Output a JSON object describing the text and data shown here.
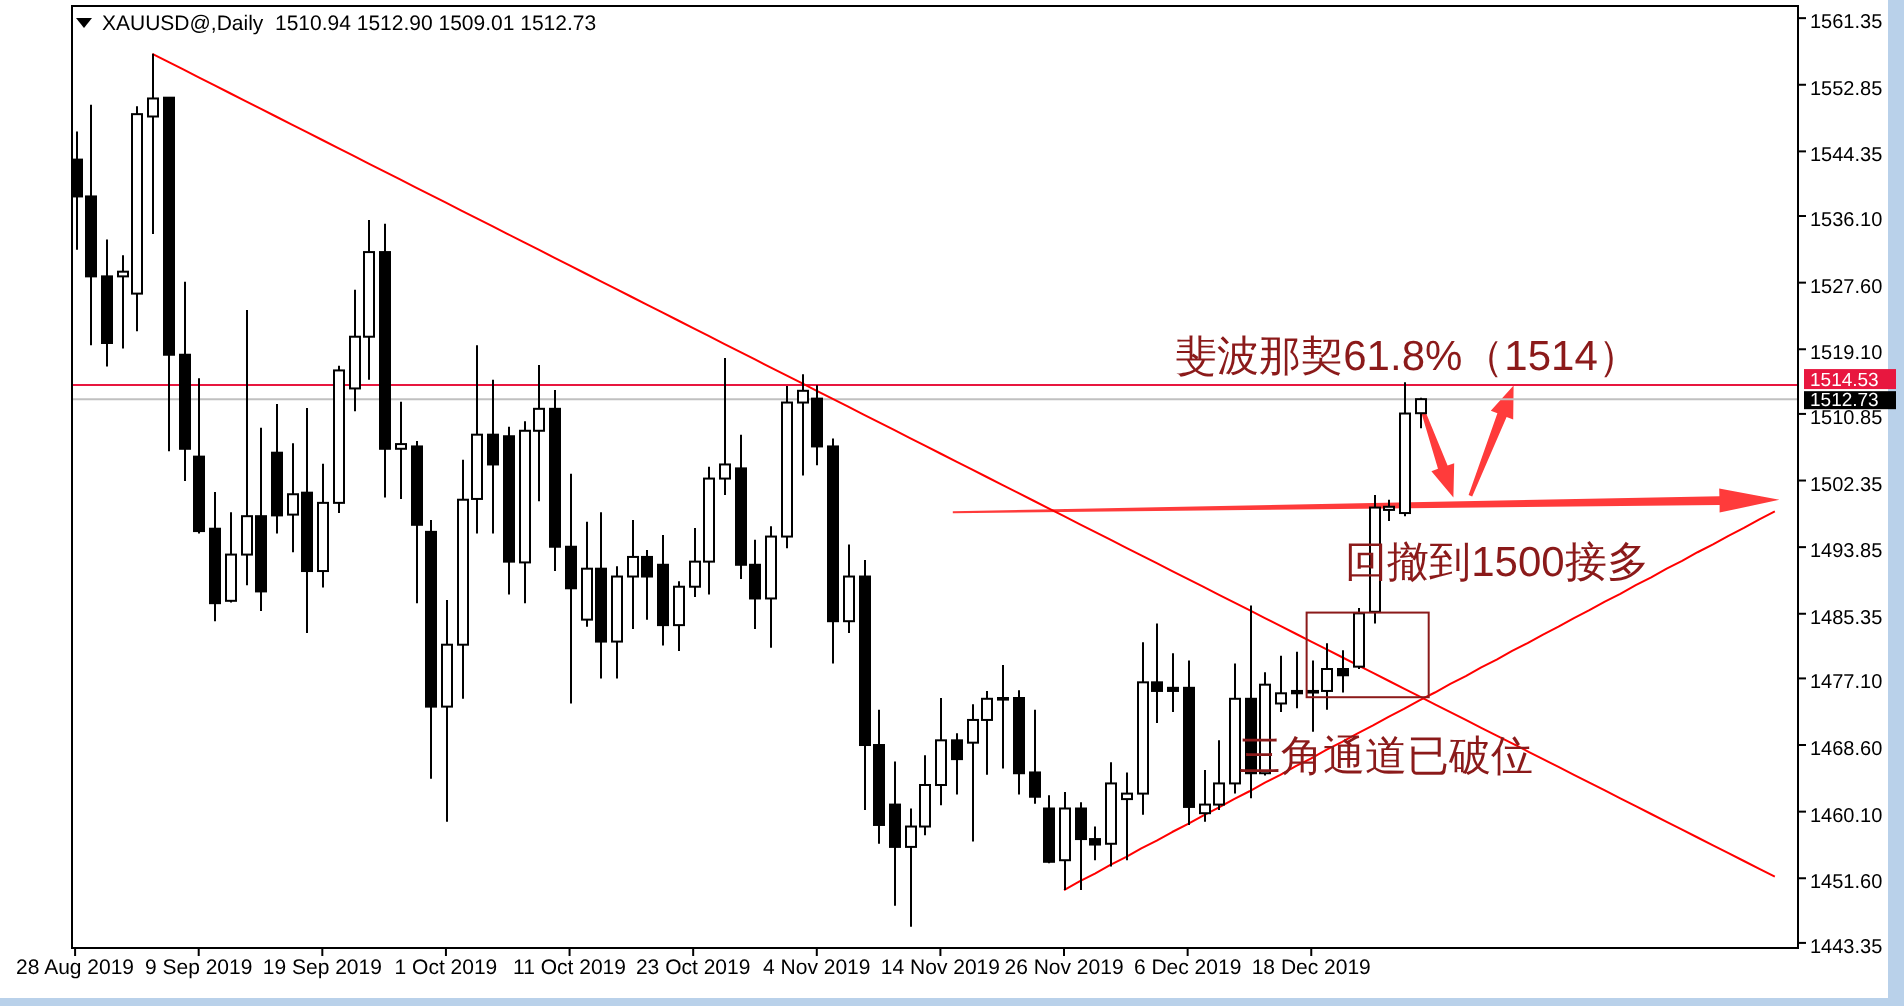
{
  "chart_data": {
    "type": "candlestick",
    "title": "XAUUSD@,Daily  1510.94 1512.90 1509.01 1512.73",
    "categories": [
      "28 Aug 2019",
      null,
      null,
      null,
      null,
      null,
      null,
      null,
      "9 Sep 2019",
      null,
      null,
      null,
      null,
      null,
      null,
      null,
      "19 Sep 2019",
      null,
      null,
      null,
      null,
      null,
      null,
      null,
      "1 Oct 2019",
      null,
      null,
      null,
      null,
      null,
      null,
      null,
      "11 Oct 2019",
      null,
      null,
      null,
      null,
      null,
      null,
      null,
      "23 Oct 2019",
      null,
      null,
      null,
      null,
      null,
      null,
      null,
      "4 Nov 2019",
      null,
      null,
      null,
      null,
      null,
      null,
      null,
      "14 Nov 2019",
      null,
      null,
      null,
      null,
      null,
      null,
      null,
      "26 Nov 2019",
      null,
      null,
      null,
      null,
      null,
      null,
      null,
      "6 Dec 2019",
      null,
      null,
      null,
      null,
      null,
      null,
      null,
      "18 Dec 2019",
      null,
      null,
      null,
      null,
      null,
      null,
      null,
      null,
      null,
      null,
      null,
      null,
      null,
      null,
      null,
      null,
      null,
      null,
      null,
      null,
      null,
      null,
      null,
      null,
      null,
      null,
      null,
      null,
      null,
      null
    ],
    "ohlc": [
      [
        1543.3,
        1546.9,
        1531.8,
        1538.6
      ],
      [
        1538.6,
        1550.3,
        1519.6,
        1528.4
      ],
      [
        1528.4,
        1533.1,
        1516.9,
        1519.9
      ],
      [
        1528.4,
        1531.1,
        1519.2,
        1529.0
      ],
      [
        1526.2,
        1550.1,
        1521.4,
        1549.1
      ],
      [
        1548.8,
        1556.8,
        1533.8,
        1551.1
      ],
      [
        1551.2,
        1551.2,
        1506.1,
        1518.4
      ],
      [
        1518.4,
        1527.7,
        1502.3,
        1506.4
      ],
      [
        1505.4,
        1515.4,
        1495.6,
        1495.9
      ],
      [
        1496.2,
        1500.9,
        1484.4,
        1486.7
      ],
      [
        1487.0,
        1498.3,
        1486.8,
        1492.9
      ],
      [
        1492.9,
        1524.1,
        1489.0,
        1497.8
      ],
      [
        1497.8,
        1509.1,
        1485.7,
        1488.2
      ],
      [
        1505.9,
        1512.1,
        1495.6,
        1497.9
      ],
      [
        1498.0,
        1507.1,
        1493.2,
        1500.6
      ],
      [
        1500.8,
        1511.6,
        1482.9,
        1490.8
      ],
      [
        1490.8,
        1504.5,
        1488.7,
        1499.5
      ],
      [
        1499.5,
        1517.0,
        1498.2,
        1516.4
      ],
      [
        1514.1,
        1526.7,
        1511.2,
        1520.7
      ],
      [
        1520.7,
        1535.6,
        1515.2,
        1531.5
      ],
      [
        1531.5,
        1535.1,
        1500.2,
        1506.4
      ],
      [
        1506.4,
        1512.4,
        1500.0,
        1507.0
      ],
      [
        1506.7,
        1507.4,
        1486.7,
        1496.7
      ],
      [
        1495.8,
        1497.3,
        1464.3,
        1473.5
      ],
      [
        1473.5,
        1487.1,
        1458.8,
        1481.4
      ],
      [
        1481.4,
        1505.0,
        1474.5,
        1499.9
      ],
      [
        1500.0,
        1519.6,
        1495.6,
        1508.2
      ],
      [
        1508.2,
        1515.2,
        1495.6,
        1504.4
      ],
      [
        1508.0,
        1509.2,
        1487.8,
        1492.0
      ],
      [
        1491.9,
        1509.9,
        1486.7,
        1508.7
      ],
      [
        1508.7,
        1517.1,
        1499.7,
        1511.5
      ],
      [
        1511.5,
        1513.9,
        1490.8,
        1493.9
      ],
      [
        1493.9,
        1503.2,
        1473.9,
        1488.6
      ],
      [
        1484.6,
        1497.1,
        1483.7,
        1491.1
      ],
      [
        1491.1,
        1498.3,
        1477.1,
        1481.8
      ],
      [
        1481.8,
        1491.4,
        1477.1,
        1490.1
      ],
      [
        1490.1,
        1497.3,
        1483.4,
        1492.6
      ],
      [
        1492.6,
        1493.5,
        1484.6,
        1490.1
      ],
      [
        1491.6,
        1495.4,
        1481.3,
        1483.9
      ],
      [
        1483.9,
        1489.5,
        1480.6,
        1488.8
      ],
      [
        1488.8,
        1496.3,
        1487.5,
        1492.0
      ],
      [
        1492.0,
        1504.1,
        1487.8,
        1502.6
      ],
      [
        1502.6,
        1518.0,
        1500.5,
        1504.4
      ],
      [
        1503.9,
        1508.2,
        1489.8,
        1491.6
      ],
      [
        1491.6,
        1494.8,
        1483.4,
        1487.3
      ],
      [
        1487.3,
        1496.5,
        1481.0,
        1495.2
      ],
      [
        1495.2,
        1514.4,
        1493.7,
        1512.3
      ],
      [
        1512.3,
        1515.9,
        1503.0,
        1513.8
      ],
      [
        1512.8,
        1514.5,
        1504.3,
        1506.7
      ],
      [
        1506.7,
        1507.7,
        1479.0,
        1484.4
      ],
      [
        1484.4,
        1494.2,
        1482.9,
        1490.1
      ],
      [
        1490.1,
        1492.2,
        1460.3,
        1468.6
      ],
      [
        1468.6,
        1473.1,
        1456.0,
        1458.4
      ],
      [
        1461.0,
        1466.5,
        1448.1,
        1455.6
      ],
      [
        1455.6,
        1460.5,
        1445.4,
        1458.2
      ],
      [
        1458.2,
        1467.3,
        1457.1,
        1463.5
      ],
      [
        1463.5,
        1474.6,
        1460.9,
        1469.2
      ],
      [
        1469.2,
        1470.1,
        1462.3,
        1466.8
      ],
      [
        1468.9,
        1473.8,
        1456.3,
        1471.8
      ],
      [
        1471.8,
        1475.5,
        1464.8,
        1474.5
      ],
      [
        1474.6,
        1478.8,
        1465.6,
        1474.6
      ],
      [
        1474.6,
        1475.6,
        1462.3,
        1465.0
      ],
      [
        1465.1,
        1473.1,
        1461.1,
        1462.0
      ],
      [
        1460.5,
        1462.2,
        1453.5,
        1453.7
      ],
      [
        1453.9,
        1462.6,
        1450.1,
        1460.5
      ],
      [
        1460.5,
        1461.3,
        1450.1,
        1456.6
      ],
      [
        1456.6,
        1458.2,
        1453.9,
        1455.9
      ],
      [
        1456.0,
        1466.4,
        1453.1,
        1463.7
      ],
      [
        1461.7,
        1465.1,
        1453.9,
        1462.4
      ],
      [
        1462.4,
        1481.7,
        1459.7,
        1476.6
      ],
      [
        1476.6,
        1484.1,
        1471.4,
        1475.5
      ],
      [
        1475.9,
        1480.3,
        1472.8,
        1475.5
      ],
      [
        1475.9,
        1479.4,
        1458.4,
        1460.7
      ],
      [
        1459.9,
        1465.4,
        1458.8,
        1461.0
      ],
      [
        1461.0,
        1469.2,
        1460.3,
        1463.7
      ],
      [
        1463.7,
        1479.0,
        1462.4,
        1474.5
      ],
      [
        1474.5,
        1486.4,
        1461.8,
        1465.0
      ],
      [
        1465.0,
        1477.9,
        1464.7,
        1476.3
      ],
      [
        1473.9,
        1480.0,
        1472.8,
        1475.2
      ],
      [
        1475.5,
        1480.5,
        1473.3,
        1475.2
      ],
      [
        1475.5,
        1479.4,
        1470.3,
        1475.5
      ],
      [
        1475.5,
        1481.6,
        1473.1,
        1478.3
      ],
      [
        1478.3,
        1480.7,
        1475.3,
        1477.5
      ],
      [
        1478.6,
        1486.1,
        1478.3,
        1485.4
      ],
      [
        1485.6,
        1500.5,
        1484.1,
        1498.9
      ],
      [
        1498.6,
        1499.9,
        1497.2,
        1499.0
      ],
      [
        1498.2,
        1514.9,
        1497.8,
        1510.9
      ],
      [
        1510.94,
        1512.9,
        1509.01,
        1512.73
      ],
      null,
      null,
      null,
      null,
      null,
      null,
      null,
      null,
      null,
      null,
      null,
      null,
      null,
      null,
      null,
      null,
      null,
      null,
      null,
      null,
      null,
      null,
      null
    ],
    "color": "#000000",
    "series": [
      {
        "type": "line",
        "color": "#ff0000",
        "values": [
          null,
          null,
          null,
          null,
          null,
          1556.8,
          1555.8,
          1554.8,
          1553.8,
          1552.8,
          1551.8,
          1550.8,
          1549.8,
          1548.8,
          1547.8,
          1546.8,
          1545.8,
          1544.8,
          1543.8,
          1542.8,
          1541.8,
          1540.8,
          1539.8,
          1538.8,
          1537.8,
          1536.8,
          1535.8,
          1534.8,
          1533.8,
          1532.8,
          1531.8,
          1530.8,
          1529.8,
          1528.8,
          1527.8,
          1526.8,
          1525.8,
          1524.8,
          1523.8,
          1522.8,
          1521.8,
          1520.8,
          1519.8,
          1518.8,
          1517.8,
          1516.8,
          1515.8,
          1514.8,
          1513.8,
          1512.8,
          1511.8,
          1510.8,
          1509.8,
          1508.8,
          1507.8,
          1506.8,
          1505.8,
          1504.8,
          1503.8,
          1502.8,
          1501.8,
          1500.8,
          1499.8,
          1498.8,
          1497.8,
          1496.8,
          1495.8,
          1494.8,
          1493.8,
          1492.8,
          1491.8,
          1490.8,
          1489.8,
          1488.8,
          1487.8,
          1486.8,
          1485.8,
          1484.8,
          1483.8,
          1482.8,
          1481.8,
          1480.8,
          1479.8,
          1478.8,
          1477.8,
          1476.8,
          1475.8,
          1474.8,
          1473.8,
          1472.8,
          1471.8,
          1470.8,
          1469.8,
          1468.8,
          1467.8,
          1466.8,
          1465.8,
          1464.8,
          1463.8,
          1462.8,
          1461.8,
          1460.8,
          1459.8,
          1458.8,
          1457.8,
          1456.8,
          1455.8,
          1454.8,
          1453.8,
          1452.8,
          1451.8
        ]
      },
      {
        "type": "line",
        "color": "#ff0000",
        "values": [
          null,
          null,
          null,
          null,
          null,
          null,
          null,
          null,
          null,
          null,
          null,
          null,
          null,
          null,
          null,
          null,
          null,
          null,
          null,
          null,
          null,
          null,
          null,
          null,
          null,
          null,
          null,
          null,
          null,
          null,
          null,
          null,
          null,
          null,
          null,
          null,
          null,
          null,
          null,
          null,
          null,
          null,
          null,
          null,
          null,
          null,
          null,
          null,
          null,
          null,
          null,
          null,
          null,
          null,
          null,
          null,
          null,
          null,
          null,
          null,
          null,
          null,
          null,
          null,
          1450.1,
          1451.2,
          1452.2,
          1453.3,
          1454.3,
          1455.4,
          1456.4,
          1457.5,
          1458.5,
          1459.6,
          1460.6,
          1461.7,
          1462.7,
          1463.8,
          1464.8,
          1465.9,
          1466.9,
          1468.0,
          1469.0,
          1470.1,
          1471.1,
          1472.2,
          1473.2,
          1474.3,
          1475.3,
          1476.4,
          1477.4,
          1478.5,
          1479.5,
          1480.6,
          1481.6,
          1482.7,
          1483.7,
          1484.8,
          1485.8,
          1486.9,
          1487.9,
          1489.0,
          1490.0,
          1491.1,
          1492.1,
          1493.2,
          1494.2,
          1495.3,
          1496.3,
          1497.4,
          1498.4
        ]
      }
    ],
    "ylim": [
      1442.7,
      1562.9
    ],
    "yticks": [
      1561.35,
      1552.85,
      1544.35,
      {
        "value": 1536.1,
        "label": "1536.10"
      },
      {
        "value": 1527.6,
        "label": "1527.60"
      },
      {
        "value": 1519.1,
        "label": "1519.10"
      },
      1510.85,
      1502.35,
      1493.85,
      1485.35,
      {
        "value": 1477.1,
        "label": "1477.10"
      },
      {
        "value": 1468.6,
        "label": "1468.60"
      },
      {
        "value": 1460.1,
        "label": "1460.10"
      },
      {
        "value": 1451.6,
        "label": "1451.60"
      },
      1443.35
    ],
    "ref_lines": [
      {
        "axis": "y",
        "value": 1514.53,
        "label": "1514.53",
        "color": "#e8173f"
      },
      {
        "axis": "y",
        "value": 1512.73,
        "label": "1512.73",
        "color": "#c0c0c0"
      }
    ],
    "annotations": [
      "斐波那契61.8%（1514）",
      "回撤到1500接多",
      "三角通道已破位"
    ]
  }
}
